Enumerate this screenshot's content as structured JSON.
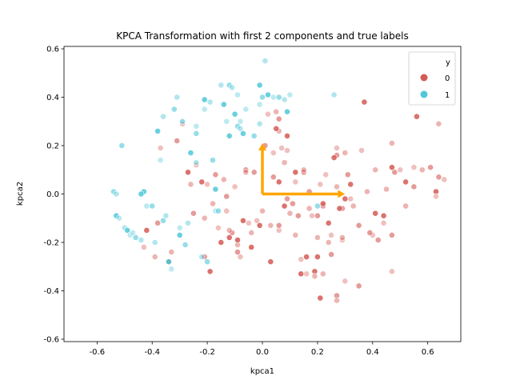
{
  "chart_data": {
    "type": "scatter",
    "title": "KPCA Transformation with first 2 components and true labels",
    "xlabel": "kpca1",
    "ylabel": "kpca2",
    "xlim": [
      -0.72,
      0.72
    ],
    "ylim": [
      -0.61,
      0.61
    ],
    "xticks": [
      "-0.6",
      "-0.4",
      "-0.2",
      "0.0",
      "0.2",
      "0.4",
      "0.6"
    ],
    "xtick_values": [
      -0.6,
      -0.4,
      -0.2,
      0.0,
      0.2,
      0.4,
      0.6
    ],
    "yticks": [
      "-0.6",
      "-0.4",
      "-0.2",
      "0.0",
      "0.2",
      "0.4",
      "0.6"
    ],
    "ytick_values": [
      -0.6,
      -0.4,
      -0.2,
      0.0,
      0.2,
      0.4,
      0.6
    ],
    "grid": false,
    "legend": {
      "title": "y",
      "placement": "top-right",
      "entries": [
        {
          "label": "0",
          "color": "#d45a55"
        },
        {
          "label": "1",
          "color": "#4fc8d8"
        }
      ]
    },
    "arrows": [
      {
        "from": [
          0.0,
          0.0
        ],
        "to": [
          0.3,
          0.0
        ],
        "color": "#ffa500"
      },
      {
        "from": [
          0.0,
          0.0
        ],
        "to": [
          0.0,
          0.21
        ],
        "color": "#ffa500"
      }
    ],
    "series": [
      {
        "name": "0",
        "color": "#d45a55",
        "points": [
          [
            0.66,
            0.06
          ],
          [
            0.64,
            0.07
          ],
          [
            0.64,
            0.29
          ],
          [
            0.63,
            0.01
          ],
          [
            0.63,
            -0.01
          ],
          [
            0.61,
            0.11
          ],
          [
            0.58,
            0.1
          ],
          [
            0.56,
            0.32
          ],
          [
            0.55,
            0.11
          ],
          [
            0.55,
            0.03
          ],
          [
            0.52,
            -0.05
          ],
          [
            0.52,
            0.05
          ],
          [
            0.5,
            0.1
          ],
          [
            0.48,
            0.09
          ],
          [
            0.47,
            0.21
          ],
          [
            0.47,
            0.11
          ],
          [
            0.47,
            -0.32
          ],
          [
            0.47,
            -0.17
          ],
          [
            0.45,
            0.02
          ],
          [
            0.44,
            -0.09
          ],
          [
            0.44,
            -0.12
          ],
          [
            0.42,
            -0.19
          ],
          [
            0.41,
            0.1
          ],
          [
            0.41,
            -0.08
          ],
          [
            0.4,
            -0.17
          ],
          [
            0.39,
            -0.16
          ],
          [
            0.38,
            0.01
          ],
          [
            0.37,
            0.38
          ],
          [
            0.36,
            0.18
          ],
          [
            0.35,
            -0.13
          ],
          [
            0.33,
            -0.05
          ],
          [
            0.32,
            0.04
          ],
          [
            0.32,
            -0.02
          ],
          [
            0.31,
            0.08
          ],
          [
            0.3,
            0.17
          ],
          [
            0.3,
            -0.02
          ],
          [
            0.29,
            -0.19
          ],
          [
            0.29,
            -0.06
          ],
          [
            0.29,
            -0.18
          ],
          [
            0.28,
            -0.06
          ],
          [
            0.27,
            0.19
          ],
          [
            0.27,
            0.16
          ],
          [
            0.27,
            0.03
          ],
          [
            0.26,
            0.15
          ],
          [
            0.25,
            -0.17
          ],
          [
            0.25,
            -0.25
          ],
          [
            0.24,
            -0.2
          ],
          [
            0.24,
            -0.12
          ],
          [
            0.23,
            0.08
          ],
          [
            0.22,
            -0.05
          ],
          [
            0.22,
            -0.33
          ],
          [
            0.22,
            -0.04
          ],
          [
            0.21,
            0.04
          ],
          [
            0.2,
            -0.09
          ],
          [
            0.2,
            -0.18
          ],
          [
            0.19,
            -0.32
          ],
          [
            0.18,
            -0.09
          ],
          [
            0.17,
            0.01
          ],
          [
            0.17,
            -0.06
          ],
          [
            0.16,
            -0.26
          ],
          [
            0.16,
            -0.33
          ],
          [
            0.15,
            0.09
          ],
          [
            0.15,
            0.1
          ],
          [
            0.14,
            -0.33
          ],
          [
            0.14,
            -0.27
          ],
          [
            0.13,
            -0.09
          ],
          [
            0.12,
            -0.17
          ],
          [
            0.12,
            0.09
          ],
          [
            0.12,
            0.05
          ],
          [
            0.11,
            -0.04
          ],
          [
            0.1,
            -0.08
          ],
          [
            0.09,
            0.24
          ],
          [
            0.09,
            0.18
          ],
          [
            0.09,
            -0.02
          ],
          [
            0.08,
            0.13
          ],
          [
            0.08,
            -0.05
          ],
          [
            0.07,
            0.19
          ],
          [
            0.06,
            0.31
          ],
          [
            0.06,
            0.26
          ],
          [
            0.06,
            0.05
          ],
          [
            0.06,
            -0.15
          ],
          [
            0.06,
            -0.13
          ],
          [
            0.05,
            0.34
          ],
          [
            0.05,
            0.27
          ],
          [
            0.04,
            0.17
          ],
          [
            0.04,
            0.07
          ],
          [
            0.03,
            -0.13
          ],
          [
            0.03,
            -0.28
          ],
          [
            0.02,
            0.33
          ],
          [
            0.01,
            0.2
          ],
          [
            0.0,
            -0.07
          ],
          [
            -0.01,
            -0.13
          ],
          [
            -0.02,
            -0.11
          ],
          [
            -0.03,
            0.09
          ],
          [
            -0.04,
            -0.16
          ],
          [
            -0.04,
            -0.22
          ],
          [
            -0.05,
            -0.12
          ],
          [
            -0.06,
            0.1
          ],
          [
            -0.06,
            0.09
          ],
          [
            -0.07,
            -0.11
          ],
          [
            -0.08,
            -0.26
          ],
          [
            -0.09,
            -0.24
          ],
          [
            -0.09,
            -0.21
          ],
          [
            -0.09,
            -0.19
          ],
          [
            -0.1,
            0.03
          ],
          [
            -0.11,
            -0.16
          ],
          [
            -0.12,
            -0.15
          ],
          [
            -0.12,
            -0.18
          ],
          [
            -0.13,
            -0.07
          ],
          [
            -0.13,
            -0.01
          ],
          [
            -0.14,
            0.06
          ],
          [
            -0.15,
            -0.2
          ],
          [
            -0.16,
            -0.14
          ],
          [
            -0.17,
            0.08
          ],
          [
            -0.18,
            -0.04
          ],
          [
            -0.19,
            -0.32
          ],
          [
            -0.2,
            0.04
          ],
          [
            -0.21,
            -0.26
          ],
          [
            -0.21,
            -0.1
          ],
          [
            -0.22,
            0.05
          ],
          [
            -0.24,
            0.12
          ],
          [
            -0.25,
            -0.08
          ],
          [
            -0.26,
            0.04
          ],
          [
            -0.27,
            0.09
          ],
          [
            -0.29,
            0.29
          ],
          [
            -0.31,
            0.22
          ],
          [
            -0.33,
            -0.24
          ],
          [
            -0.34,
            -0.28
          ],
          [
            -0.37,
            0.19
          ],
          [
            -0.38,
            -0.12
          ],
          [
            -0.39,
            -0.26
          ],
          [
            -0.42,
            -0.15
          ],
          [
            -0.43,
            -0.22
          ],
          [
            0.27,
            -0.42
          ],
          [
            0.27,
            -0.44
          ],
          [
            0.21,
            -0.43
          ],
          [
            0.3,
            -0.36
          ],
          [
            0.35,
            -0.38
          ],
          [
            0.19,
            -0.34
          ],
          [
            0.2,
            -0.26
          ]
        ]
      },
      {
        "name": "1",
        "color": "#4fc8d8",
        "points": [
          [
            -0.54,
            0.01
          ],
          [
            -0.53,
            0.0
          ],
          [
            -0.53,
            -0.09
          ],
          [
            -0.52,
            -0.1
          ],
          [
            -0.51,
            0.2
          ],
          [
            -0.5,
            -0.14
          ],
          [
            -0.49,
            -0.15
          ],
          [
            -0.48,
            -0.17
          ],
          [
            -0.46,
            -0.18
          ],
          [
            -0.44,
            -0.19
          ],
          [
            -0.43,
            0.01
          ],
          [
            -0.42,
            -0.05
          ],
          [
            -0.4,
            -0.05
          ],
          [
            -0.39,
            -0.2
          ],
          [
            -0.38,
            0.26
          ],
          [
            -0.37,
            0.14
          ],
          [
            -0.36,
            -0.11
          ],
          [
            -0.36,
            0.32
          ],
          [
            -0.34,
            -0.28
          ],
          [
            -0.33,
            -0.31
          ],
          [
            -0.32,
            0.35
          ],
          [
            -0.31,
            0.4
          ],
          [
            -0.3,
            -0.17
          ],
          [
            -0.3,
            -0.14
          ],
          [
            -0.29,
            0.3
          ],
          [
            -0.27,
            -0.12
          ],
          [
            -0.26,
            0.17
          ],
          [
            -0.24,
            0.28
          ],
          [
            -0.24,
            0.25
          ],
          [
            -0.22,
            -0.26
          ],
          [
            -0.21,
            0.39
          ],
          [
            -0.21,
            0.35
          ],
          [
            -0.2,
            -0.28
          ],
          [
            -0.19,
            0.38
          ],
          [
            -0.17,
            0.02
          ],
          [
            -0.17,
            -0.07
          ],
          [
            -0.16,
            -0.07
          ],
          [
            -0.15,
            0.45
          ],
          [
            -0.14,
            0.37
          ],
          [
            -0.13,
            0.3
          ],
          [
            -0.12,
            0.45
          ],
          [
            -0.11,
            0.44
          ],
          [
            -0.1,
            0.33
          ],
          [
            -0.09,
            0.41
          ],
          [
            -0.09,
            0.28
          ],
          [
            -0.08,
            0.27
          ],
          [
            -0.07,
            0.25
          ],
          [
            -0.06,
            0.35
          ],
          [
            -0.03,
            0.24
          ],
          [
            -0.01,
            0.29
          ],
          [
            -0.01,
            0.45
          ],
          [
            -0.01,
            0.37
          ],
          [
            0.0,
            0.4
          ],
          [
            0.01,
            0.55
          ],
          [
            0.02,
            0.41
          ],
          [
            0.04,
            0.4
          ],
          [
            0.06,
            0.4
          ],
          [
            0.08,
            0.39
          ],
          [
            0.09,
            0.34
          ],
          [
            0.1,
            0.41
          ],
          [
            0.2,
            -0.05
          ],
          [
            0.26,
            0.41
          ],
          [
            -0.12,
            0.24
          ],
          [
            -0.08,
            0.3
          ],
          [
            -0.18,
            0.14
          ],
          [
            -0.24,
            0.13
          ],
          [
            -0.44,
            0.0
          ],
          [
            -0.47,
            -0.16
          ],
          [
            -0.28,
            -0.21
          ],
          [
            -0.35,
            -0.09
          ]
        ]
      }
    ]
  }
}
